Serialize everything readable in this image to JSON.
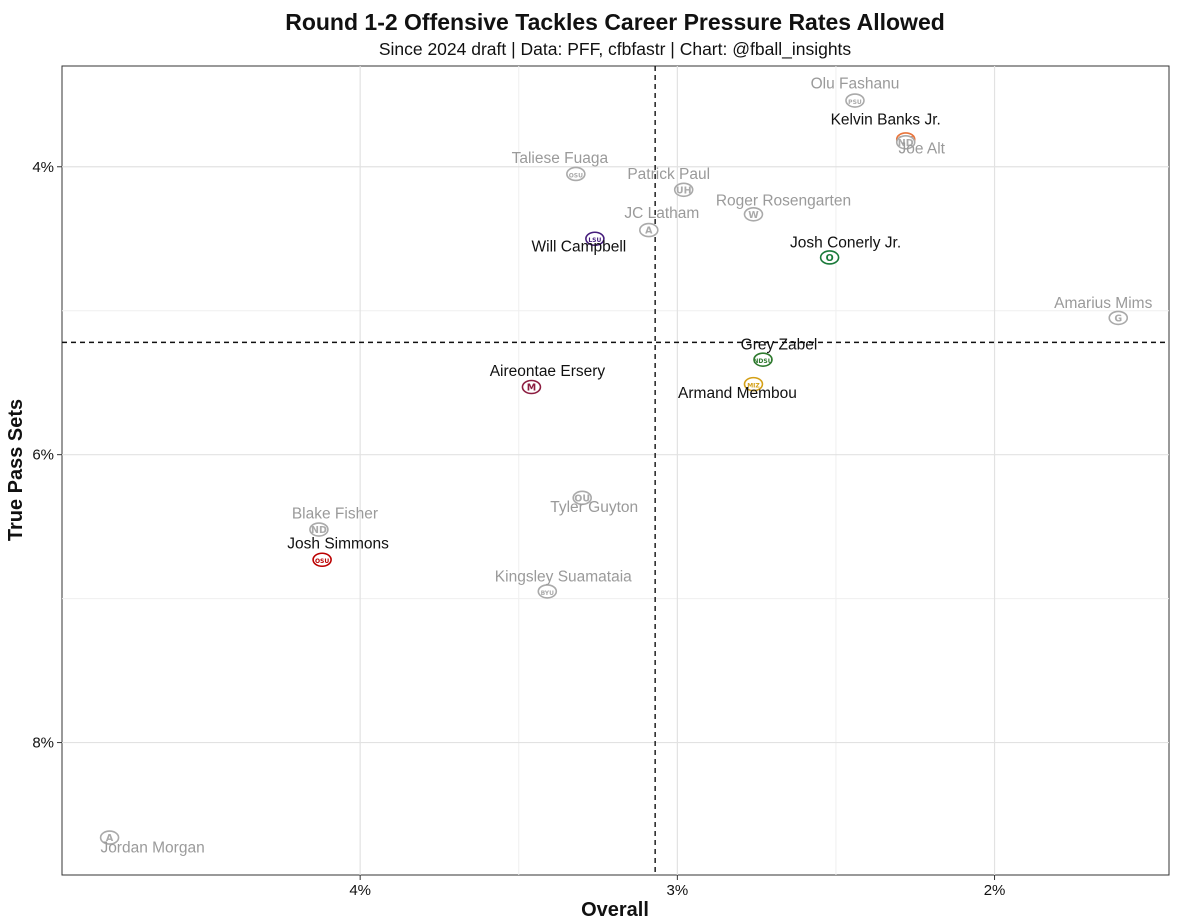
{
  "chart_data": {
    "type": "scatter",
    "title": "Round 1-2 Offensive Tackles Career Pressure Rates Allowed",
    "subtitle": "Since 2024 draft | Data: PFF, cfbfastr | Chart: @fball_insights",
    "xlabel": "Overall",
    "ylabel": "True Pass Sets",
    "xlim": [
      4.94,
      1.45
    ],
    "ylim": [
      3.3,
      8.92
    ],
    "x_reversed": true,
    "y_reversed": true,
    "x_ticks": [
      {
        "value": 4,
        "label": "4%"
      },
      {
        "value": 3,
        "label": "3%"
      },
      {
        "value": 2,
        "label": "2%"
      }
    ],
    "y_ticks": [
      {
        "value": 4,
        "label": "4%"
      },
      {
        "value": 6,
        "label": "6%"
      },
      {
        "value": 8,
        "label": "8%"
      }
    ],
    "ref_lines": {
      "x": 3.07,
      "y": 5.22
    },
    "points": [
      {
        "name": "Olu Fashanu",
        "school": "Penn State",
        "x": 2.44,
        "y": 3.54,
        "highlight": false,
        "logo": "PSU",
        "logo_color": "#aaaaaa"
      },
      {
        "name": "Kelvin Banks Jr.",
        "school": "Texas",
        "x": 2.28,
        "y": 3.81,
        "highlight": true,
        "logo": "UT",
        "logo_color": "#e8743b"
      },
      {
        "name": "Joe Alt",
        "school": "Notre Dame",
        "x": 2.28,
        "y": 3.83,
        "highlight": false,
        "logo": "ND",
        "logo_color": "#aaaaaa"
      },
      {
        "name": "Taliese Fuaga",
        "school": "Oregon State",
        "x": 3.32,
        "y": 4.05,
        "highlight": false,
        "logo": "OSU",
        "logo_color": "#aaaaaa"
      },
      {
        "name": "Patrick Paul",
        "school": "Houston",
        "x": 2.98,
        "y": 4.16,
        "highlight": false,
        "logo": "UH",
        "logo_color": "#aaaaaa"
      },
      {
        "name": "Roger Rosengarten",
        "school": "Washington",
        "x": 2.76,
        "y": 4.33,
        "highlight": false,
        "logo": "W",
        "logo_color": "#aaaaaa"
      },
      {
        "name": "JC Latham",
        "school": "Alabama",
        "x": 3.09,
        "y": 4.44,
        "highlight": false,
        "logo": "A",
        "logo_color": "#aaaaaa"
      },
      {
        "name": "Will Campbell",
        "school": "LSU",
        "x": 3.26,
        "y": 4.5,
        "highlight": true,
        "logo": "LSU",
        "logo_color": "#461d7c"
      },
      {
        "name": "Josh Conerly Jr.",
        "school": "Oregon",
        "x": 2.52,
        "y": 4.63,
        "highlight": true,
        "logo": "O",
        "logo_color": "#1a7a3a"
      },
      {
        "name": "Amarius Mims",
        "school": "Georgia",
        "x": 1.61,
        "y": 5.05,
        "highlight": false,
        "logo": "G",
        "logo_color": "#aaaaaa"
      },
      {
        "name": "Grey Zabel",
        "school": "North Dakota State",
        "x": 2.73,
        "y": 5.34,
        "highlight": true,
        "logo": "NDSU",
        "logo_color": "#2f7a2f"
      },
      {
        "name": "Armand Membou",
        "school": "Missouri",
        "x": 2.76,
        "y": 5.51,
        "highlight": true,
        "logo": "MIZ",
        "logo_color": "#d4a017"
      },
      {
        "name": "Aireontae Ersery",
        "school": "Minnesota",
        "x": 3.46,
        "y": 5.53,
        "highlight": true,
        "logo": "M",
        "logo_color": "#8c1d40"
      },
      {
        "name": "Tyler Guyton",
        "school": "Oklahoma",
        "x": 3.3,
        "y": 6.3,
        "highlight": false,
        "logo": "OU",
        "logo_color": "#aaaaaa"
      },
      {
        "name": "Blake Fisher",
        "school": "Notre Dame",
        "x": 4.13,
        "y": 6.52,
        "highlight": false,
        "logo": "ND",
        "logo_color": "#aaaaaa"
      },
      {
        "name": "Josh Simmons",
        "school": "Ohio State",
        "x": 4.12,
        "y": 6.73,
        "highlight": true,
        "logo": "OSU",
        "logo_color": "#bb0000"
      },
      {
        "name": "Kingsley Suamataia",
        "school": "BYU",
        "x": 3.41,
        "y": 6.95,
        "highlight": false,
        "logo": "BYU",
        "logo_color": "#aaaaaa"
      },
      {
        "name": "Jordan Morgan",
        "school": "Arizona",
        "x": 4.79,
        "y": 8.66,
        "highlight": false,
        "logo": "A",
        "logo_color": "#aaaaaa"
      }
    ]
  }
}
